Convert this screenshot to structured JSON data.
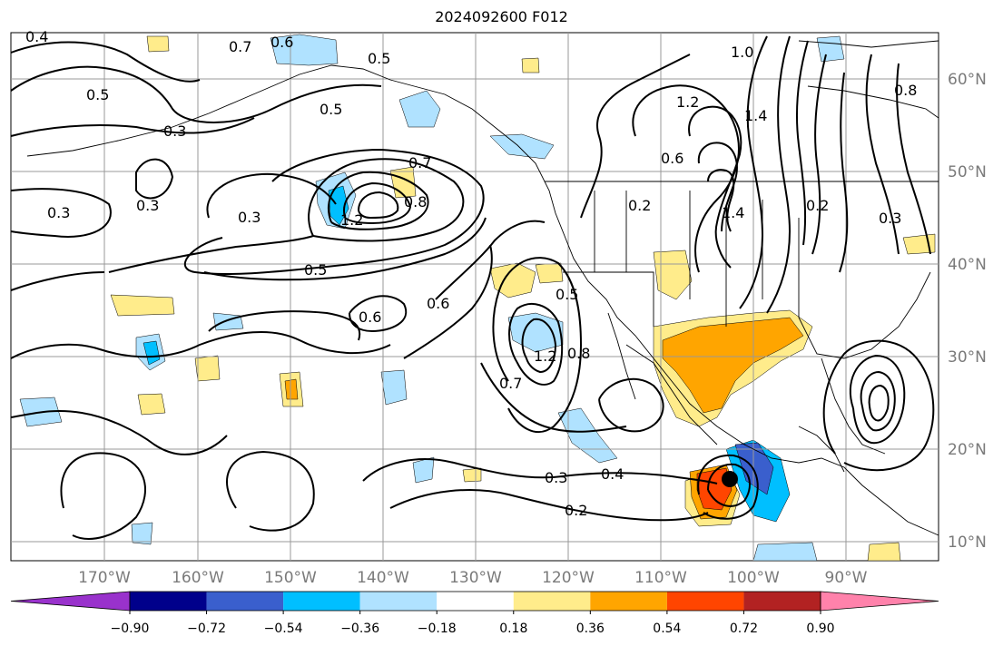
{
  "title": "2024092600 F012",
  "lat_labels": [
    "60°N",
    "50°N",
    "40°N",
    "30°N",
    "20°N",
    "10°N"
  ],
  "lon_labels": [
    "170°W",
    "160°W",
    "150°W",
    "140°W",
    "130°W",
    "120°W",
    "110°W",
    "100°W",
    "90°W"
  ],
  "colorbar": {
    "colors": [
      "#9932cc",
      "#00008b",
      "#3a5fcd",
      "#00bfff",
      "#b0e2ff",
      "#ffffff",
      "#ffec8b",
      "#ffa500",
      "#ff4500",
      "#b22222",
      "#ff82ab"
    ],
    "tick_labels": [
      "−0.90",
      "−0.72",
      "−0.54",
      "−0.36",
      "−0.18",
      "0.18",
      "0.36",
      "0.54",
      "0.72",
      "0.90"
    ]
  },
  "contour_labels": [
    "0.4",
    "0.7",
    "0.6",
    "0.5",
    "0.5",
    "0.5",
    "0.3",
    "0.7",
    "0.8",
    "1.2",
    "0.3",
    "0.3",
    "0.3",
    "0.5",
    "0.6",
    "0.6",
    "1.2",
    "0.8",
    "0.7",
    "0.5",
    "0.4",
    "0.3",
    "0.2",
    "1.0",
    "1.2",
    "1.4",
    "1.4",
    "0.8",
    "0.6",
    "0.2",
    "0.3",
    "0.2"
  ],
  "storm_marker": "tropical-cyclone-center"
}
